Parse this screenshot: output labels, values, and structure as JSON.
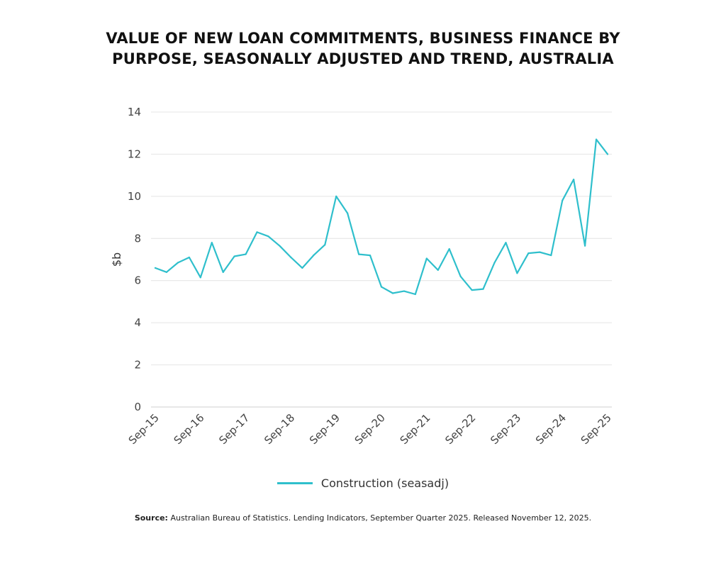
{
  "chart_data": {
    "type": "line",
    "title_line1": "VALUE OF NEW LOAN COMMITMENTS, BUSINESS FINANCE BY",
    "title_line2": "PURPOSE, SEASONALLY ADJUSTED AND TREND, AUSTRALIA",
    "ylabel": "$b",
    "xlabel": "",
    "ylim": [
      0,
      14
    ],
    "yticks": [
      0,
      2,
      4,
      6,
      8,
      10,
      12,
      14
    ],
    "grid": true,
    "legend_position": "bottom-center",
    "xtick_labels": [
      "Sep-15",
      "Sep-16",
      "Sep-17",
      "Sep-18",
      "Sep-19",
      "Sep-20",
      "Sep-21",
      "Sep-22",
      "Sep-23",
      "Sep-24",
      "Sep-25"
    ],
    "x": [
      "Sep-15",
      "Dec-15",
      "Mar-16",
      "Jun-16",
      "Sep-16",
      "Dec-16",
      "Mar-17",
      "Jun-17",
      "Sep-17",
      "Dec-17",
      "Mar-18",
      "Jun-18",
      "Sep-18",
      "Dec-18",
      "Mar-19",
      "Jun-19",
      "Sep-19",
      "Dec-19",
      "Mar-20",
      "Jun-20",
      "Sep-20",
      "Dec-20",
      "Mar-21",
      "Jun-21",
      "Sep-21",
      "Dec-21",
      "Mar-22",
      "Jun-22",
      "Sep-22",
      "Dec-22",
      "Mar-23",
      "Jun-23",
      "Sep-23",
      "Dec-23",
      "Mar-24",
      "Jun-24",
      "Sep-24",
      "Dec-24",
      "Mar-25",
      "Jun-25",
      "Sep-25"
    ],
    "series": [
      {
        "name": "Construction (seasadj)",
        "color": "#2fbfcc",
        "values": [
          6.6,
          6.4,
          6.85,
          7.1,
          6.15,
          7.8,
          6.4,
          7.15,
          7.25,
          8.3,
          8.1,
          7.65,
          7.1,
          6.6,
          7.2,
          7.7,
          10.0,
          9.2,
          7.25,
          7.2,
          5.7,
          5.4,
          5.5,
          5.35,
          7.05,
          6.5,
          7.5,
          6.2,
          5.55,
          5.6,
          6.85,
          7.8,
          6.35,
          7.3,
          7.35,
          7.2,
          9.8,
          10.8,
          7.65,
          12.7,
          12.0
        ]
      }
    ]
  },
  "legend": {
    "label": "Construction (seasadj)"
  },
  "source": {
    "label": "Source:",
    "text": "Australian Bureau of Statistics. Lending Indicators, September Quarter 2025. Released November 12, 2025."
  }
}
